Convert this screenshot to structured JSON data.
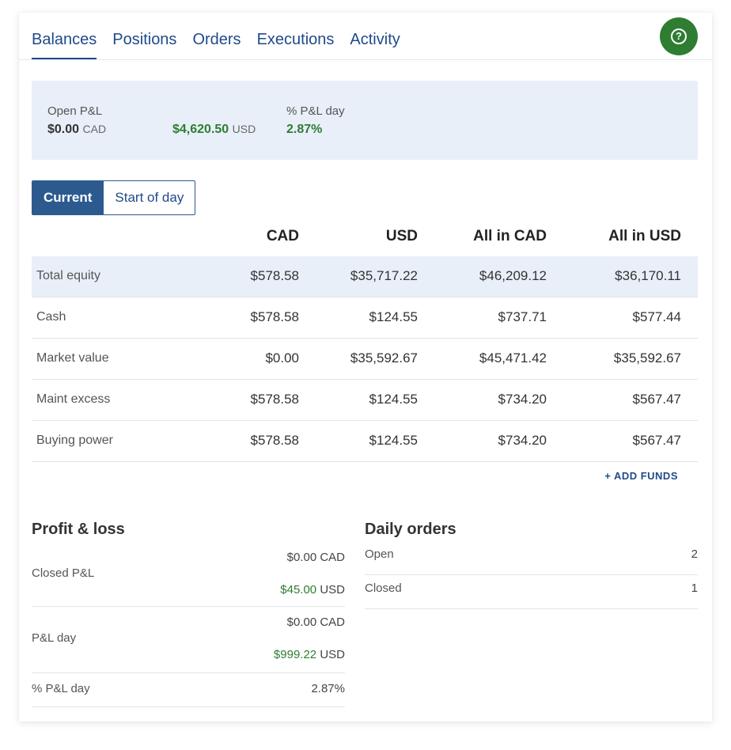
{
  "tabs": [
    "Balances",
    "Positions",
    "Orders",
    "Executions",
    "Activity"
  ],
  "help_icon": "question-circle-icon",
  "summary": {
    "open_pl_label": "Open P&L",
    "open_pl_cad": "$0.00",
    "cad": "CAD",
    "open_pl_usd": "$4,620.50",
    "usd": "USD",
    "pct_label": "% P&L day",
    "pct_value": "2.87%"
  },
  "toggle": {
    "current": "Current",
    "start_of_day": "Start of day"
  },
  "balances": {
    "headers": [
      "CAD",
      "USD",
      "All in CAD",
      "All in USD"
    ],
    "rows": [
      {
        "label": "Total equity",
        "values": [
          "$578.58",
          "$35,717.22",
          "$46,209.12",
          "$36,170.11"
        ]
      },
      {
        "label": "Cash",
        "values": [
          "$578.58",
          "$124.55",
          "$737.71",
          "$577.44"
        ]
      },
      {
        "label": "Market value",
        "values": [
          "$0.00",
          "$35,592.67",
          "$45,471.42",
          "$35,592.67"
        ]
      },
      {
        "label": "Maint excess",
        "values": [
          "$578.58",
          "$124.55",
          "$734.20",
          "$567.47"
        ]
      },
      {
        "label": "Buying power",
        "values": [
          "$578.58",
          "$124.55",
          "$734.20",
          "$567.47"
        ]
      }
    ]
  },
  "add_funds": "+ ADD FUNDS",
  "profit_loss": {
    "title": "Profit & loss",
    "closed_label": "Closed P&L",
    "closed_cad": "$0.00 CAD",
    "closed_usd_num": "$45.00",
    "closed_usd_cur": "USD",
    "day_label": "P&L day",
    "day_cad": "$0.00 CAD",
    "day_usd_num": "$999.22",
    "day_usd_cur": "USD",
    "pct_label": "% P&L day",
    "pct_value": "2.87%"
  },
  "daily_orders": {
    "title": "Daily orders",
    "rows": [
      {
        "label": "Open",
        "value": "2"
      },
      {
        "label": "Closed",
        "value": "1"
      }
    ]
  },
  "colors": {
    "brand_blue": "#1f4a8a",
    "positive_green": "#2e7d32",
    "panel_bg": "#e8eff9"
  }
}
